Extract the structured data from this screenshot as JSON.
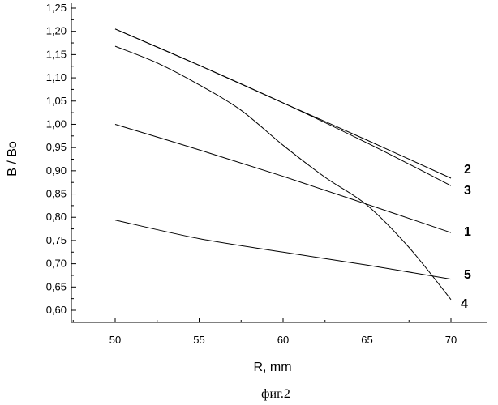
{
  "chart_data": {
    "type": "line",
    "xlabel": "R, mm",
    "ylabel": "B / Bo",
    "xlim": [
      47.5,
      72.5
    ],
    "ylim": [
      0.58,
      1.25
    ],
    "xticks": [
      50,
      55,
      60,
      65,
      70
    ],
    "yticks": [
      "0,60",
      "0,65",
      "0,70",
      "0,75",
      "0,80",
      "0,85",
      "0,90",
      "0,95",
      "1,00",
      "1,05",
      "1,10",
      "1,15",
      "1,20",
      "1,25"
    ],
    "grid": false,
    "series": [
      {
        "name": "1",
        "x": [
          50,
          55,
          60,
          65,
          70
        ],
        "y": [
          1.0,
          0.945,
          0.888,
          0.828,
          0.767
        ]
      },
      {
        "name": "2",
        "x": [
          50,
          55,
          60,
          65,
          70
        ],
        "y": [
          1.205,
          1.127,
          1.046,
          0.966,
          0.884
        ]
      },
      {
        "name": "3",
        "x": [
          50,
          55,
          60,
          65,
          70
        ],
        "y": [
          1.205,
          1.127,
          1.046,
          0.96,
          0.868
        ]
      },
      {
        "name": "4",
        "x": [
          50,
          52.5,
          55,
          57.5,
          60,
          62.5,
          65,
          67.5,
          70
        ],
        "y": [
          1.168,
          1.132,
          1.085,
          1.03,
          0.955,
          0.886,
          0.826,
          0.735,
          0.623
        ]
      },
      {
        "name": "5",
        "x": [
          50,
          55,
          60,
          65,
          70
        ],
        "y": [
          0.794,
          0.754,
          0.725,
          0.697,
          0.667
        ]
      }
    ],
    "caption": "фиг.2"
  }
}
